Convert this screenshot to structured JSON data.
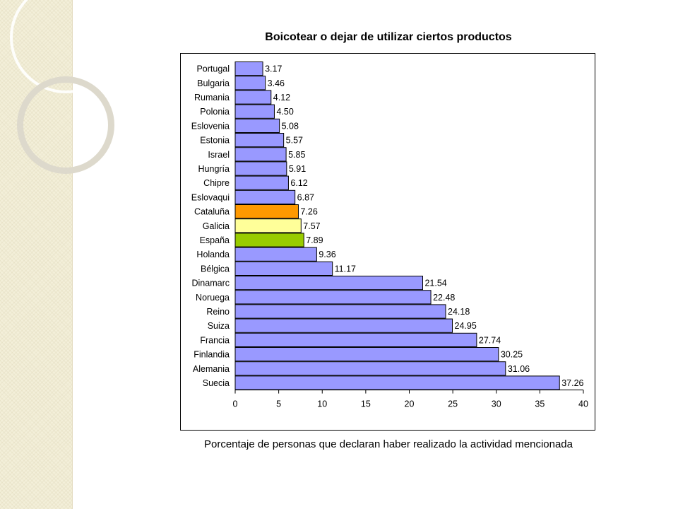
{
  "chart_data": {
    "type": "bar",
    "orientation": "horizontal",
    "title": "Boicotear o dejar de utilizar ciertos productos",
    "xlabel": "Porcentaje de personas que declaran haber realizado la actividad mencionada",
    "ylabel": "",
    "xlim": [
      0,
      40
    ],
    "xticks": [
      "0",
      "5",
      "10",
      "15",
      "20",
      "25",
      "30",
      "35",
      "40"
    ],
    "grid": false,
    "categories": [
      "Portugal",
      "Bulgaria",
      "Rumania",
      "Polonia",
      "Eslovenia",
      "Estonia",
      "Israel",
      "Hungría",
      "Chipre",
      "Eslovaqui",
      "Cataluña",
      "Galicia",
      "España",
      "Holanda",
      "Bélgica",
      "Dinamarc",
      "Noruega",
      "Reino",
      "Suiza",
      "Francia",
      "Finlandia",
      "Alemania",
      "Suecia"
    ],
    "values": [
      3.17,
      3.46,
      4.12,
      4.5,
      5.08,
      5.57,
      5.85,
      5.91,
      6.12,
      6.87,
      7.26,
      7.57,
      7.89,
      9.36,
      11.17,
      21.54,
      22.48,
      24.18,
      24.95,
      27.74,
      30.25,
      31.06,
      37.26
    ],
    "value_labels": [
      "3.17",
      "3.46",
      "4.12",
      "4.50",
      "5.08",
      "5.57",
      "5.85",
      "5.91",
      "6.12",
      "6.87",
      "7.26",
      "7.57",
      "7.89",
      "9.36",
      "11.17",
      "21.54",
      "22.48",
      "24.18",
      "24.95",
      "27.74",
      "30.25",
      "31.06",
      "37.26"
    ],
    "colors": {
      "default": "#9999ff",
      "Cataluña": "#ff9900",
      "Galicia": "#ffff99",
      "España": "#99cc00"
    }
  }
}
